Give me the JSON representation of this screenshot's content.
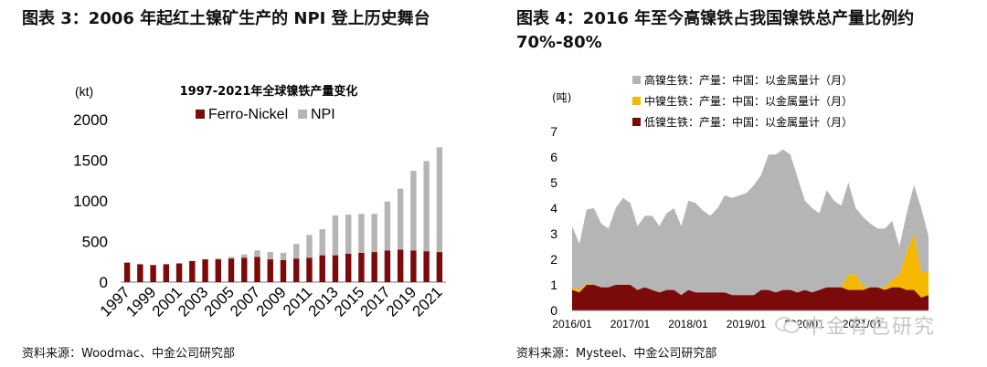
{
  "left_title": "图表 3：2006 年起红土镍矿生产的 NPI 登上历史舞台",
  "right_title": "图表 4：2016 年至今高镍铁占我国镍铁总产量比例约 70%-80%",
  "left_source": "资料来源：Woodmac、中金公司研究部",
  "right_source": "资料来源：Mysteel、中金公司研究部",
  "watermark": "中金有色研究",
  "colors": {
    "dark_red": "#7b0a0a",
    "gray": "#b5b5b5",
    "yellow": "#f5b800"
  },
  "chart_data": [
    {
      "type": "bar",
      "stacked": true,
      "title": "1997-2021年全球镍铁产量变化",
      "ylabel": "(kt)",
      "ylim": [
        0,
        2000
      ],
      "yticks": [
        0,
        500,
        1000,
        1500,
        2000
      ],
      "categories": [
        "1997",
        "1998",
        "1999",
        "2000",
        "2001",
        "2002",
        "2003",
        "2004",
        "2005",
        "2006",
        "2007",
        "2008",
        "2009",
        "2010",
        "2011",
        "2012",
        "2013",
        "2014",
        "2015",
        "2016",
        "2017",
        "2018",
        "2019",
        "2020",
        "2021"
      ],
      "xtick_labels": [
        "1997",
        "1999",
        "2001",
        "2003",
        "2005",
        "2007",
        "2009",
        "2011",
        "2013",
        "2015",
        "2017",
        "2019",
        "2021"
      ],
      "legend_position": "top",
      "series": [
        {
          "name": "Ferro-Nickel",
          "color": "#7b0a0a",
          "values": [
            240,
            220,
            210,
            220,
            230,
            260,
            280,
            280,
            290,
            300,
            310,
            280,
            270,
            290,
            300,
            330,
            330,
            350,
            360,
            370,
            390,
            400,
            390,
            380,
            370
          ]
        },
        {
          "name": "NPI",
          "color": "#b5b5b5",
          "values": [
            0,
            0,
            0,
            0,
            0,
            0,
            0,
            10,
            20,
            40,
            80,
            90,
            90,
            180,
            280,
            320,
            490,
            480,
            480,
            470,
            600,
            750,
            980,
            1110,
            1290
          ]
        }
      ]
    },
    {
      "type": "area",
      "stacked": true,
      "ylabel": "(吨)",
      "ylim": [
        0,
        7
      ],
      "yticks": [
        0,
        1,
        2,
        3,
        4,
        5,
        6,
        7
      ],
      "xtick_labels": [
        "2016/01",
        "2017/01",
        "2018/01",
        "2019/01",
        "2020/01",
        "2021/01"
      ],
      "legend_position": "top",
      "series": [
        {
          "name": "高镍生铁：产量：中国：以金属量计（月）",
          "color": "#b5b5b5",
          "values": [
            2.4,
            1.8,
            2.9,
            3.0,
            2.5,
            2.3,
            3.0,
            3.4,
            3.2,
            2.5,
            2.8,
            2.9,
            2.6,
            3.0,
            3.2,
            2.7,
            3.5,
            3.5,
            3.2,
            3.0,
            3.3,
            3.8,
            3.8,
            3.9,
            4.0,
            4.3,
            4.5,
            5.3,
            5.4,
            5.5,
            5.3,
            4.5,
            3.5,
            3.3,
            3.0,
            3.8,
            3.4,
            3.2,
            3.6,
            2.6,
            2.7,
            2.5,
            2.3,
            2.3,
            2.3,
            1.1,
            1.5,
            1.9,
            2.5,
            1.4
          ]
        },
        {
          "name": "中镍生铁：产量：中国：以金属量计（月）",
          "color": "#f5b800",
          "values": [
            0.1,
            0.1,
            0.05,
            0.0,
            0.0,
            0.0,
            0.0,
            0.0,
            0.0,
            0.0,
            0.0,
            0.0,
            0.0,
            0.0,
            0.0,
            0.0,
            0.0,
            0.0,
            0.0,
            0.0,
            0.0,
            0.0,
            0.0,
            0.0,
            0.0,
            0.0,
            0.0,
            0.0,
            0.0,
            0.0,
            0.0,
            0.0,
            0.0,
            0.0,
            0.0,
            0.0,
            0.0,
            0.0,
            0.6,
            0.6,
            0.15,
            0.0,
            0.0,
            0.1,
            0.3,
            0.5,
            1.5,
            2.2,
            1.0,
            0.9
          ]
        },
        {
          "name": "低镍生铁：产量：中国：以金属量计（月）",
          "color": "#7b0a0a",
          "values": [
            0.8,
            0.7,
            1.0,
            1.0,
            0.9,
            0.9,
            1.0,
            1.0,
            1.0,
            0.8,
            0.9,
            0.8,
            0.7,
            0.8,
            0.8,
            0.6,
            0.8,
            0.7,
            0.7,
            0.7,
            0.7,
            0.7,
            0.6,
            0.6,
            0.6,
            0.6,
            0.8,
            0.8,
            0.7,
            0.8,
            0.8,
            0.7,
            0.8,
            0.7,
            0.8,
            0.9,
            0.9,
            0.9,
            0.8,
            0.8,
            0.8,
            0.9,
            0.9,
            0.8,
            0.9,
            0.9,
            0.8,
            0.8,
            0.5,
            0.6
          ]
        }
      ]
    }
  ]
}
